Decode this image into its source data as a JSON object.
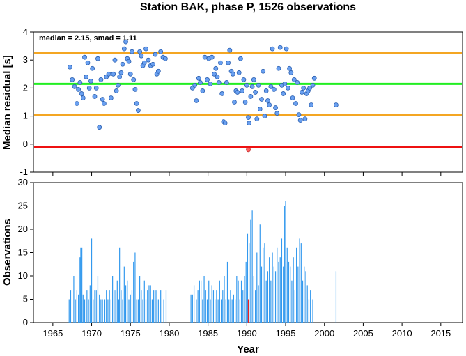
{
  "chart_data": [
    {
      "type": "scatter",
      "title": "Station BAK, phase P, 1526 observations",
      "annotation": "median = 2.15, smad = 1.11",
      "xlabel": "",
      "ylabel": "Median residual [s]",
      "xlim": [
        1962.5,
        2017.8
      ],
      "ylim": [
        -1,
        4
      ],
      "yticks": [
        "-1",
        "0",
        "1",
        "2",
        "3",
        "4"
      ],
      "xticks": [
        1965,
        1970,
        1975,
        1980,
        1985,
        1990,
        1995,
        2000,
        2005,
        2010,
        2015
      ],
      "colors": {
        "point": "#6aa0f0",
        "outlier": "#ff6060",
        "median": "#22ee22",
        "smad": "#f4a623",
        "zero_line": "#ee1111"
      },
      "hlines": [
        {
          "name": "upper",
          "y": 3.26,
          "color": "#f4a623"
        },
        {
          "name": "median",
          "y": 2.15,
          "color": "#22ee22"
        },
        {
          "name": "lower",
          "y": 1.04,
          "color": "#f4a623"
        },
        {
          "name": "outlier-limit",
          "y": -0.1,
          "color": "#ee1111"
        }
      ],
      "points": [
        [
          1967.2,
          2.75
        ],
        [
          1967.5,
          2.3
        ],
        [
          1967.8,
          2.05
        ],
        [
          1968.1,
          1.45
        ],
        [
          1968.3,
          1.95
        ],
        [
          1968.5,
          2.2
        ],
        [
          1968.7,
          1.8
        ],
        [
          1968.9,
          1.65
        ],
        [
          1969.1,
          3.1
        ],
        [
          1969.3,
          2.4
        ],
        [
          1969.5,
          2.9
        ],
        [
          1969.7,
          2.0
        ],
        [
          1969.9,
          2.25
        ],
        [
          1970.1,
          2.7
        ],
        [
          1970.4,
          1.7
        ],
        [
          1970.6,
          2.0
        ],
        [
          1970.8,
          3.05
        ],
        [
          1971.0,
          0.6
        ],
        [
          1971.2,
          2.3
        ],
        [
          1971.4,
          1.6
        ],
        [
          1971.6,
          1.45
        ],
        [
          1971.9,
          2.4
        ],
        [
          1972.2,
          2.5
        ],
        [
          1972.5,
          1.65
        ],
        [
          1972.8,
          2.5
        ],
        [
          1973.0,
          3.0
        ],
        [
          1973.2,
          1.9
        ],
        [
          1973.4,
          2.1
        ],
        [
          1973.6,
          2.4
        ],
        [
          1973.8,
          2.55
        ],
        [
          1974.0,
          2.85
        ],
        [
          1974.2,
          3.4
        ],
        [
          1974.4,
          3.65
        ],
        [
          1974.6,
          3.05
        ],
        [
          1974.8,
          2.95
        ],
        [
          1975.0,
          2.5
        ],
        [
          1975.2,
          3.3
        ],
        [
          1975.4,
          2.3
        ],
        [
          1975.6,
          1.95
        ],
        [
          1975.8,
          1.45
        ],
        [
          1976.0,
          1.2
        ],
        [
          1976.2,
          3.3
        ],
        [
          1976.4,
          3.15
        ],
        [
          1976.6,
          2.8
        ],
        [
          1976.8,
          2.9
        ],
        [
          1977.0,
          3.4
        ],
        [
          1977.3,
          3.0
        ],
        [
          1977.6,
          2.8
        ],
        [
          1977.9,
          2.85
        ],
        [
          1978.2,
          3.2
        ],
        [
          1978.4,
          2.5
        ],
        [
          1978.6,
          2.6
        ],
        [
          1978.9,
          3.3
        ],
        [
          1979.2,
          3.1
        ],
        [
          1979.5,
          3.05
        ],
        [
          1983.0,
          2.0
        ],
        [
          1983.3,
          2.1
        ],
        [
          1983.5,
          1.55
        ],
        [
          1983.8,
          2.35
        ],
        [
          1984.0,
          2.2
        ],
        [
          1984.3,
          1.9
        ],
        [
          1984.6,
          3.1
        ],
        [
          1984.9,
          2.3
        ],
        [
          1985.1,
          3.05
        ],
        [
          1985.3,
          2.15
        ],
        [
          1985.5,
          3.1
        ],
        [
          1985.8,
          2.5
        ],
        [
          1986.0,
          2.7
        ],
        [
          1986.2,
          2.4
        ],
        [
          1986.4,
          2.2
        ],
        [
          1986.6,
          2.9
        ],
        [
          1986.8,
          1.8
        ],
        [
          1987.0,
          0.8
        ],
        [
          1987.2,
          0.75
        ],
        [
          1987.4,
          2.2
        ],
        [
          1987.6,
          2.9
        ],
        [
          1987.8,
          3.35
        ],
        [
          1988.0,
          2.6
        ],
        [
          1988.2,
          2.5
        ],
        [
          1988.4,
          1.5
        ],
        [
          1988.6,
          1.9
        ],
        [
          1988.8,
          1.85
        ],
        [
          1989.0,
          2.55
        ],
        [
          1989.2,
          3.05
        ],
        [
          1989.4,
          1.9
        ],
        [
          1989.6,
          2.3
        ],
        [
          1989.8,
          1.5
        ],
        [
          1990.0,
          2.1
        ],
        [
          1990.2,
          0.95
        ],
        [
          1990.3,
          0.75
        ],
        [
          1990.5,
          1.7
        ],
        [
          1990.7,
          2.05
        ],
        [
          1990.9,
          2.3
        ],
        [
          1991.1,
          1.85
        ],
        [
          1991.3,
          0.9
        ],
        [
          1991.5,
          2.1
        ],
        [
          1991.7,
          1.25
        ],
        [
          1991.9,
          1.6
        ],
        [
          1992.1,
          2.6
        ],
        [
          1992.3,
          1.0
        ],
        [
          1992.5,
          1.9
        ],
        [
          1992.7,
          1.55
        ],
        [
          1992.9,
          1.4
        ],
        [
          1993.1,
          2.05
        ],
        [
          1993.3,
          3.4
        ],
        [
          1993.5,
          1.95
        ],
        [
          1993.7,
          1.3
        ],
        [
          1993.9,
          1.1
        ],
        [
          1994.1,
          2.7
        ],
        [
          1994.3,
          3.45
        ],
        [
          1994.5,
          2.1
        ],
        [
          1994.7,
          1.8
        ],
        [
          1994.9,
          2.15
        ],
        [
          1995.1,
          3.4
        ],
        [
          1995.3,
          2.0
        ],
        [
          1995.5,
          2.7
        ],
        [
          1995.7,
          2.55
        ],
        [
          1995.9,
          1.65
        ],
        [
          1996.1,
          2.3
        ],
        [
          1996.3,
          1.45
        ],
        [
          1996.5,
          2.2
        ],
        [
          1996.7,
          1.05
        ],
        [
          1996.9,
          0.85
        ],
        [
          1997.1,
          1.85
        ],
        [
          1997.3,
          2.0
        ],
        [
          1997.5,
          0.9
        ],
        [
          1997.7,
          1.8
        ],
        [
          1997.9,
          1.9
        ],
        [
          1998.1,
          2.0
        ],
        [
          1998.3,
          1.4
        ],
        [
          1998.5,
          2.1
        ],
        [
          1998.7,
          2.35
        ],
        [
          2001.5,
          1.4
        ]
      ],
      "outliers": [
        [
          1990.2,
          -0.2
        ]
      ]
    },
    {
      "type": "bar",
      "xlabel": "Year",
      "ylabel": "Observations",
      "xlim": [
        1962.5,
        2017.8
      ],
      "ylim": [
        0,
        30
      ],
      "yticks": [
        "0",
        "5",
        "10",
        "15",
        "20",
        "25",
        "30"
      ],
      "xticks": [
        "1965",
        "1970",
        "1975",
        "1980",
        "1985",
        "1990",
        "1995",
        "2000",
        "2005",
        "2010",
        "2015"
      ],
      "bars": [
        [
          1967.1,
          5
        ],
        [
          1967.3,
          7
        ],
        [
          1967.7,
          10
        ],
        [
          1967.9,
          5
        ],
        [
          1968.1,
          7
        ],
        [
          1968.3,
          6
        ],
        [
          1968.5,
          14
        ],
        [
          1968.6,
          16
        ],
        [
          1968.75,
          16
        ],
        [
          1968.9,
          6
        ],
        [
          1969.1,
          5
        ],
        [
          1969.4,
          7
        ],
        [
          1969.6,
          5
        ],
        [
          1969.8,
          8
        ],
        [
          1970.0,
          18
        ],
        [
          1970.2,
          5
        ],
        [
          1970.4,
          7
        ],
        [
          1970.6,
          7
        ],
        [
          1970.8,
          10
        ],
        [
          1971.0,
          6
        ],
        [
          1971.2,
          5
        ],
        [
          1971.4,
          5
        ],
        [
          1971.7,
          5
        ],
        [
          1971.9,
          7
        ],
        [
          1972.1,
          5
        ],
        [
          1972.3,
          7
        ],
        [
          1972.5,
          5
        ],
        [
          1972.7,
          10
        ],
        [
          1972.9,
          7
        ],
        [
          1973.1,
          7
        ],
        [
          1973.3,
          9
        ],
        [
          1973.5,
          5
        ],
        [
          1973.6,
          16
        ],
        [
          1973.8,
          7
        ],
        [
          1974.0,
          5
        ],
        [
          1974.2,
          12
        ],
        [
          1974.4,
          8
        ],
        [
          1974.6,
          9
        ],
        [
          1974.8,
          5
        ],
        [
          1975.0,
          6
        ],
        [
          1975.2,
          7
        ],
        [
          1975.4,
          13
        ],
        [
          1975.6,
          15
        ],
        [
          1975.8,
          5
        ],
        [
          1976.0,
          5
        ],
        [
          1976.2,
          10
        ],
        [
          1976.4,
          7
        ],
        [
          1976.6,
          5
        ],
        [
          1976.8,
          9
        ],
        [
          1977.0,
          5
        ],
        [
          1977.2,
          7
        ],
        [
          1977.4,
          8
        ],
        [
          1977.6,
          8
        ],
        [
          1977.8,
          5
        ],
        [
          1978.0,
          7
        ],
        [
          1978.3,
          7
        ],
        [
          1978.6,
          5
        ],
        [
          1978.9,
          7
        ],
        [
          1979.3,
          5
        ],
        [
          1979.6,
          7
        ],
        [
          1982.8,
          6
        ],
        [
          1983.0,
          6
        ],
        [
          1983.2,
          8
        ],
        [
          1983.5,
          5
        ],
        [
          1983.7,
          7
        ],
        [
          1983.9,
          9
        ],
        [
          1984.1,
          9
        ],
        [
          1984.3,
          5
        ],
        [
          1984.5,
          10
        ],
        [
          1984.7,
          7
        ],
        [
          1984.9,
          5
        ],
        [
          1985.1,
          9
        ],
        [
          1985.3,
          5
        ],
        [
          1985.5,
          8
        ],
        [
          1985.7,
          7
        ],
        [
          1985.9,
          5
        ],
        [
          1986.1,
          7
        ],
        [
          1986.3,
          5
        ],
        [
          1986.5,
          9
        ],
        [
          1986.7,
          5
        ],
        [
          1986.9,
          7
        ],
        [
          1987.1,
          10
        ],
        [
          1987.3,
          5
        ],
        [
          1987.5,
          13
        ],
        [
          1987.7,
          5
        ],
        [
          1987.9,
          7
        ],
        [
          1988.1,
          5
        ],
        [
          1988.3,
          6
        ],
        [
          1988.5,
          5
        ],
        [
          1988.7,
          10
        ],
        [
          1988.9,
          9
        ],
        [
          1989.1,
          5
        ],
        [
          1989.3,
          9
        ],
        [
          1989.5,
          7
        ],
        [
          1989.7,
          10
        ],
        [
          1989.9,
          13
        ],
        [
          1990.1,
          19
        ],
        [
          1990.3,
          17
        ],
        [
          1990.5,
          22
        ],
        [
          1990.7,
          24
        ],
        [
          1990.9,
          10
        ],
        [
          1991.1,
          7
        ],
        [
          1991.3,
          15
        ],
        [
          1991.5,
          8
        ],
        [
          1991.7,
          21
        ],
        [
          1991.9,
          12
        ],
        [
          1992.1,
          16
        ],
        [
          1992.3,
          17
        ],
        [
          1992.5,
          9
        ],
        [
          1992.7,
          11
        ],
        [
          1992.9,
          14
        ],
        [
          1993.1,
          9
        ],
        [
          1993.3,
          15
        ],
        [
          1993.5,
          12
        ],
        [
          1993.7,
          11
        ],
        [
          1993.9,
          16
        ],
        [
          1994.1,
          13
        ],
        [
          1994.3,
          14
        ],
        [
          1994.5,
          18
        ],
        [
          1994.7,
          12
        ],
        [
          1994.85,
          25
        ],
        [
          1995.0,
          26
        ],
        [
          1995.2,
          16
        ],
        [
          1995.4,
          13
        ],
        [
          1995.6,
          12
        ],
        [
          1995.8,
          9
        ],
        [
          1996.0,
          14
        ],
        [
          1996.2,
          7
        ],
        [
          1996.4,
          16
        ],
        [
          1996.6,
          12
        ],
        [
          1996.8,
          18
        ],
        [
          1997.0,
          17
        ],
        [
          1997.2,
          9
        ],
        [
          1997.4,
          12
        ],
        [
          1997.6,
          11
        ],
        [
          1997.8,
          8
        ],
        [
          1998.0,
          5
        ],
        [
          1998.2,
          7
        ],
        [
          1998.5,
          5
        ],
        [
          2001.5,
          11
        ]
      ],
      "highlight_bars": [
        [
          1990.2,
          5
        ]
      ]
    }
  ]
}
